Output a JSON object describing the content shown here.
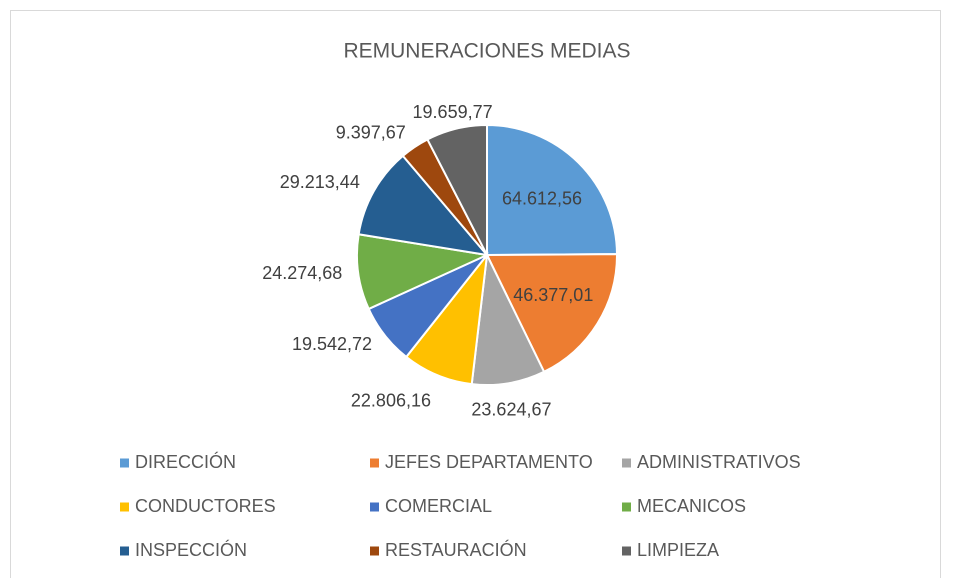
{
  "chart_data": {
    "type": "pie",
    "title": "REMUNERACIONES MEDIAS",
    "categories": [
      "DIRECCIÓN",
      "JEFES DEPARTAMENTO",
      "ADMINISTRATIVOS",
      "CONDUCTORES",
      "COMERCIAL",
      "MECANICOS",
      "INSPECCIÓN",
      "RESTAURACIÓN",
      "LIMPIEZA"
    ],
    "values": [
      64612.56,
      46377.01,
      23624.67,
      22806.16,
      19542.72,
      24274.68,
      29213.44,
      9397.67,
      19659.77
    ],
    "value_labels": [
      "64.612,56",
      "46.377,01",
      "23.624,67",
      "22.806,16",
      "19.542,72",
      "24.274,68",
      "29.213,44",
      "9.397,67",
      "19.659,77"
    ],
    "colors": [
      "#5b9bd5",
      "#ed7d31",
      "#a5a5a5",
      "#ffc000",
      "#4472c4",
      "#70ad47",
      "#255e91",
      "#9e480e",
      "#636363"
    ],
    "legend": "bottom"
  }
}
